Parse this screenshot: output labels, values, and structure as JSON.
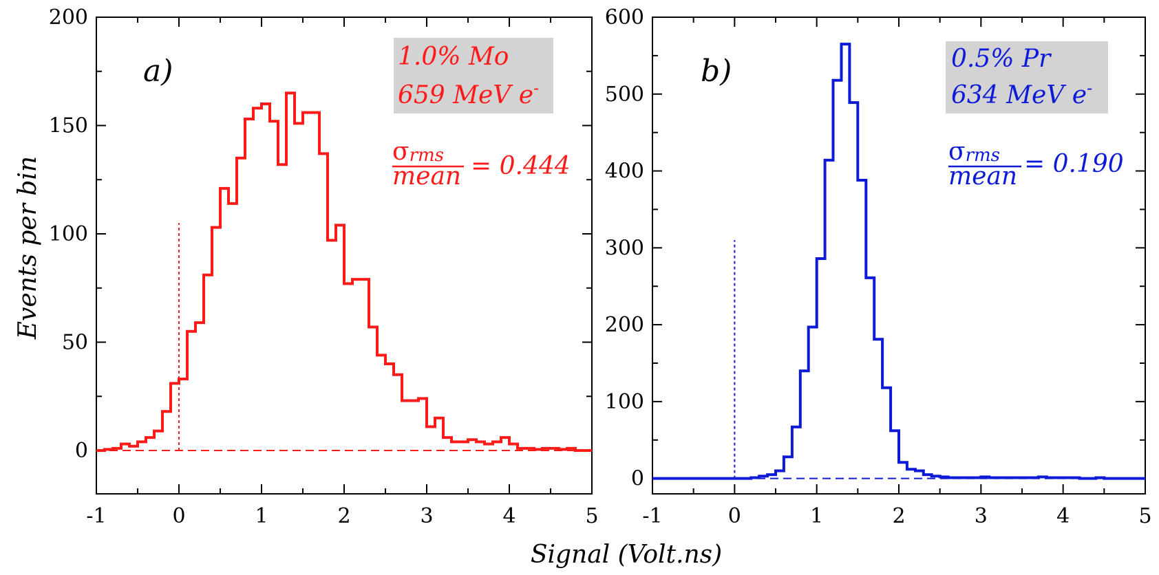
{
  "figure": {
    "ylabel": "Events per bin",
    "xlabel": "Signal (Volt.ns)"
  },
  "chart_data": [
    {
      "type": "histogram",
      "panel": "a)",
      "color": "#ff1a1a",
      "legend_line1": "1.0% Mo",
      "legend_line2": "659 MeV e",
      "legend_sup": "-",
      "ratio_sigma": "σ",
      "ratio_sub": "rms",
      "ratio_den": "mean",
      "ratio_value": "= 0.444",
      "xlim": [
        -1,
        5
      ],
      "ylim": [
        -20,
        200
      ],
      "xticks": [
        -1,
        0,
        1,
        2,
        3,
        4,
        5
      ],
      "yticks": [
        0,
        50,
        100,
        150,
        200
      ],
      "xtick_labels": [
        "-1",
        "0",
        "1",
        "2",
        "3",
        "4",
        "5"
      ],
      "ytick_labels": [
        "0",
        "50",
        "100",
        "150",
        "200"
      ],
      "bin_start": -1.0,
      "bin_width": 0.1,
      "values": [
        0,
        0.5,
        1,
        3,
        2,
        4,
        6,
        9,
        18,
        31,
        33,
        55,
        59,
        81,
        103,
        121,
        114,
        135,
        153,
        158,
        160,
        152,
        132,
        165,
        151,
        156,
        156,
        137,
        97,
        104,
        77,
        79,
        79,
        57,
        44,
        40,
        35,
        23,
        23,
        24,
        11,
        15,
        6,
        4,
        4,
        5,
        4,
        3,
        4,
        6,
        3,
        1,
        1,
        0.5,
        1,
        1,
        0.5,
        1,
        0,
        0
      ],
      "zero_marker_top": 105
    },
    {
      "type": "histogram",
      "panel": "b)",
      "color": "#0d1ad6",
      "legend_line1": "0.5% Pr",
      "legend_line2": "634 MeV e",
      "legend_sup": "-",
      "ratio_sigma": "σ",
      "ratio_sub": "rms",
      "ratio_den": "mean",
      "ratio_value": "= 0.190",
      "xlim": [
        -1,
        5
      ],
      "ylim": [
        -20,
        600
      ],
      "xticks": [
        -1,
        0,
        1,
        2,
        3,
        4,
        5
      ],
      "yticks": [
        0,
        100,
        200,
        300,
        400,
        500,
        600
      ],
      "xtick_labels": [
        "-1",
        "0",
        "1",
        "2",
        "3",
        "4",
        "5"
      ],
      "ytick_labels": [
        "0",
        "100",
        "200",
        "300",
        "400",
        "500",
        "600"
      ],
      "bin_start": -1.0,
      "bin_width": 0.1,
      "values": [
        0,
        0,
        0,
        0,
        0,
        0,
        0,
        0,
        0,
        0,
        0,
        0,
        1,
        3,
        5,
        10,
        28,
        67,
        140,
        197,
        286,
        414,
        518,
        565,
        489,
        388,
        261,
        181,
        118,
        62,
        21,
        12,
        10,
        5,
        3,
        2,
        1,
        1,
        1,
        1,
        2,
        1,
        1,
        1,
        1,
        1,
        1,
        2,
        1,
        1,
        1,
        1,
        0,
        0,
        1,
        0,
        0,
        0,
        0,
        0
      ],
      "zero_marker_top": 310
    }
  ]
}
